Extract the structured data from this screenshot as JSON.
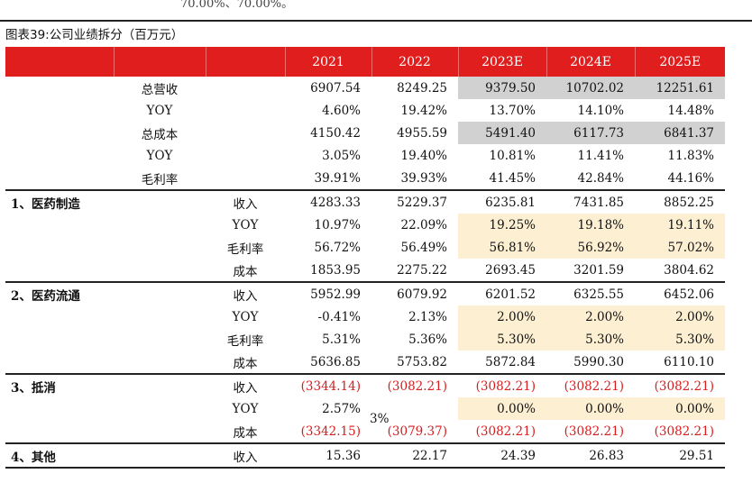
{
  "top_note": "70.00%、70.00%。",
  "title": "图表39:公司业绩拆分（百万元）",
  "header": {
    "col0": "",
    "col1": "",
    "col2": "",
    "years": [
      "2021",
      "2022",
      "2023E",
      "2024E",
      "2025E"
    ]
  },
  "summary_rows": [
    {
      "metric": "总营收",
      "values": [
        "6907.54",
        "8249.25",
        "9379.50",
        "10702.02",
        "12251.61"
      ]
    },
    {
      "metric": "YOY",
      "values": [
        "4.60%",
        "19.42%",
        "13.70%",
        "14.10%",
        "14.48%"
      ]
    },
    {
      "metric": "总成本",
      "values": [
        "4150.42",
        "4955.59",
        "5491.40",
        "6117.73",
        "6841.37"
      ]
    },
    {
      "metric": "YOY",
      "values": [
        "3.05%",
        "19.40%",
        "10.81%",
        "11.41%",
        "11.83%"
      ]
    },
    {
      "metric": "毛利率",
      "values": [
        "39.91%",
        "39.93%",
        "41.45%",
        "42.84%",
        "44.16%"
      ]
    }
  ],
  "sections": [
    {
      "name": "1、医药制造",
      "rows": [
        {
          "sub": "收入",
          "values": [
            "4283.33",
            "5229.37",
            "6235.81",
            "7431.85",
            "8852.25"
          ]
        },
        {
          "sub": "YOY",
          "values": [
            "10.97%",
            "22.09%",
            "19.25%",
            "19.18%",
            "19.11%"
          ]
        },
        {
          "sub": "毛利率",
          "values": [
            "56.72%",
            "56.49%",
            "56.81%",
            "56.92%",
            "57.02%"
          ]
        },
        {
          "sub": "成本",
          "values": [
            "1853.95",
            "2275.22",
            "2693.45",
            "3201.59",
            "3804.62"
          ]
        }
      ]
    },
    {
      "name": "2、医药流通",
      "rows": [
        {
          "sub": "收入",
          "values": [
            "5952.99",
            "6079.92",
            "6201.52",
            "6325.55",
            "6452.06"
          ]
        },
        {
          "sub": "YOY",
          "values": [
            "-0.41%",
            "2.13%",
            "2.00%",
            "2.00%",
            "2.00%"
          ]
        },
        {
          "sub": "毛利率",
          "values": [
            "5.31%",
            "5.36%",
            "5.30%",
            "5.30%",
            "5.30%"
          ]
        },
        {
          "sub": "成本",
          "values": [
            "5636.85",
            "5753.82",
            "5872.84",
            "5990.30",
            "6110.10"
          ]
        }
      ]
    },
    {
      "name": "3、抵消",
      "rows": [
        {
          "sub": "收入",
          "values": [
            "(3344.14)",
            "(3082.21)",
            "(3082.21)",
            "(3082.21)",
            "(3082.21)"
          ]
        },
        {
          "sub": "YOY",
          "values": [
            "2.57%",
            "",
            "0.00%",
            "0.00%",
            "0.00%"
          ]
        },
        {
          "sub": "成本",
          "values": [
            "(3342.15)",
            "(3079.37)",
            "(3082.21)",
            "(3082.21)",
            "(3082.21)"
          ]
        }
      ]
    },
    {
      "name": "4、其他",
      "rows": [
        {
          "sub": "收入",
          "values": [
            "15.36",
            "22.17",
            "24.39",
            "26.83",
            "29.51"
          ]
        }
      ]
    }
  ],
  "artifact_text": "3%"
}
